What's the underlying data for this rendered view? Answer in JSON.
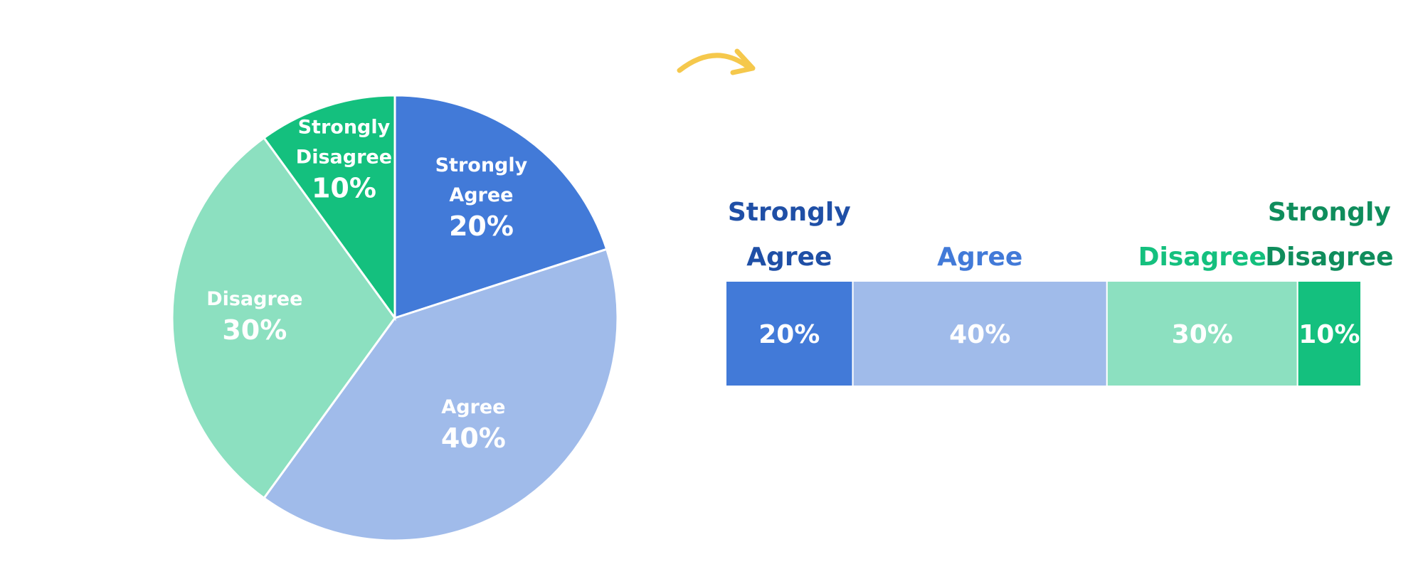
{
  "chart_data": [
    {
      "type": "pie",
      "slices": [
        {
          "label": "Strongly Agree",
          "label_lines": [
            "Strongly",
            "Agree"
          ],
          "value": 20,
          "display": "20%",
          "color": "#427ad8"
        },
        {
          "label": "Agree",
          "label_lines": [
            "Agree"
          ],
          "value": 40,
          "display": "40%",
          "color": "#a0bbea"
        },
        {
          "label": "Disagree",
          "label_lines": [
            "Disagree"
          ],
          "value": 30,
          "display": "30%",
          "color": "#8ce0c0"
        },
        {
          "label": "Strongly Disagree",
          "label_lines": [
            "Strongly",
            "Disagree"
          ],
          "value": 10,
          "display": "10%",
          "color": "#14c07e"
        }
      ]
    },
    {
      "type": "bar",
      "orientation": "horizontal-stacked",
      "segments": [
        {
          "label": "Strongly Agree",
          "label_lines": [
            "Strongly",
            "Agree"
          ],
          "value": 20,
          "display": "20%",
          "color": "#427ad8",
          "label_color": "#1f4fa6"
        },
        {
          "label": "Agree",
          "label_lines": [
            "Agree"
          ],
          "value": 40,
          "display": "40%",
          "color": "#a0bbea",
          "label_color": "#427ad8"
        },
        {
          "label": "Disagree",
          "label_lines": [
            "Disagree"
          ],
          "value": 30,
          "display": "30%",
          "color": "#8ce0c0",
          "label_color": "#14c07e"
        },
        {
          "label": "Strongly Disagree",
          "label_lines": [
            "Strongly",
            "Disagree"
          ],
          "value": 10,
          "display": "10%",
          "color": "#14c07e",
          "label_color": "#0f8d5c"
        }
      ]
    }
  ],
  "decor": {
    "arrow_color": "#f5c84c",
    "arrow_icon": "curved-arrow-icon"
  }
}
